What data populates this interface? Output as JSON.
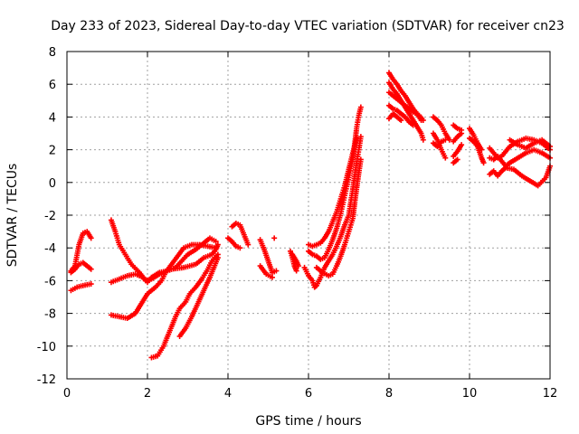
{
  "chart_data": {
    "type": "scatter",
    "title": "Day 233 of 2023, Sidereal Day-to-day VTEC variation (SDTVAR) for receiver cn23",
    "xlabel": "GPS time / hours",
    "ylabel": "SDTVAR / TECUs",
    "xlim": [
      0,
      12
    ],
    "ylim": [
      -12,
      8
    ],
    "xticks": [
      0,
      2,
      4,
      6,
      8,
      10,
      12
    ],
    "yticks": [
      -12,
      -10,
      -8,
      -6,
      -4,
      -2,
      0,
      2,
      4,
      6,
      8
    ],
    "grid": true,
    "marker": "+",
    "color": "#ff0000",
    "tracks": [
      {
        "name": "track-1",
        "points": [
          [
            0.1,
            -5.4
          ],
          [
            0.2,
            -5.1
          ],
          [
            0.3,
            -3.8
          ],
          [
            0.4,
            -3.1
          ],
          [
            0.5,
            -3.0
          ],
          [
            0.6,
            -3.4
          ]
        ]
      },
      {
        "name": "track-2",
        "points": [
          [
            0.1,
            -5.5
          ],
          [
            0.2,
            -5.3
          ],
          [
            0.3,
            -5.0
          ],
          [
            0.4,
            -4.9
          ],
          [
            0.5,
            -5.1
          ],
          [
            0.6,
            -5.3
          ]
        ]
      },
      {
        "name": "track-3",
        "points": [
          [
            0.1,
            -6.6
          ],
          [
            0.25,
            -6.4
          ],
          [
            0.4,
            -6.3
          ],
          [
            0.6,
            -6.2
          ]
        ]
      },
      {
        "name": "track-4",
        "points": [
          [
            1.1,
            -2.3
          ],
          [
            1.2,
            -3.0
          ],
          [
            1.3,
            -3.8
          ],
          [
            1.45,
            -4.4
          ],
          [
            1.6,
            -5.0
          ],
          [
            1.8,
            -5.5
          ],
          [
            1.95,
            -6.0
          ],
          [
            2.1,
            -5.9
          ],
          [
            2.3,
            -5.6
          ],
          [
            2.6,
            -5.3
          ],
          [
            2.9,
            -5.2
          ],
          [
            3.2,
            -5.0
          ],
          [
            3.4,
            -4.6
          ],
          [
            3.6,
            -4.4
          ],
          [
            3.7,
            -4.1
          ],
          [
            3.75,
            -3.8
          ]
        ]
      },
      {
        "name": "track-5",
        "points": [
          [
            1.1,
            -6.1
          ],
          [
            1.3,
            -5.9
          ],
          [
            1.5,
            -5.7
          ],
          [
            1.7,
            -5.6
          ],
          [
            1.9,
            -5.8
          ],
          [
            2.0,
            -6.1
          ],
          [
            2.1,
            -5.8
          ],
          [
            2.3,
            -5.5
          ],
          [
            2.5,
            -5.4
          ],
          [
            2.7,
            -5.2
          ],
          [
            2.85,
            -4.8
          ],
          [
            3.0,
            -4.4
          ],
          [
            3.2,
            -4.1
          ],
          [
            3.4,
            -3.7
          ],
          [
            3.55,
            -3.4
          ],
          [
            3.7,
            -3.6
          ]
        ]
      },
      {
        "name": "track-6",
        "points": [
          [
            1.1,
            -8.1
          ],
          [
            1.3,
            -8.2
          ],
          [
            1.5,
            -8.3
          ],
          [
            1.7,
            -8.0
          ],
          [
            1.8,
            -7.6
          ],
          [
            1.9,
            -7.2
          ],
          [
            2.0,
            -6.8
          ],
          [
            2.2,
            -6.4
          ],
          [
            2.35,
            -6.0
          ],
          [
            2.45,
            -5.5
          ],
          [
            2.6,
            -5.0
          ],
          [
            2.75,
            -4.5
          ],
          [
            2.9,
            -4.0
          ],
          [
            3.1,
            -3.8
          ],
          [
            3.3,
            -3.8
          ],
          [
            3.5,
            -3.9
          ],
          [
            3.7,
            -4.0
          ]
        ]
      },
      {
        "name": "track-7",
        "points": [
          [
            2.1,
            -10.7
          ],
          [
            2.25,
            -10.6
          ],
          [
            2.4,
            -10.0
          ],
          [
            2.5,
            -9.4
          ],
          [
            2.6,
            -8.8
          ],
          [
            2.7,
            -8.2
          ],
          [
            2.8,
            -7.7
          ],
          [
            2.95,
            -7.3
          ],
          [
            3.05,
            -6.8
          ],
          [
            3.2,
            -6.4
          ],
          [
            3.35,
            -5.9
          ],
          [
            3.5,
            -5.3
          ],
          [
            3.6,
            -4.8
          ],
          [
            3.75,
            -4.4
          ]
        ]
      },
      {
        "name": "track-8",
        "points": [
          [
            2.8,
            -9.4
          ],
          [
            2.95,
            -8.9
          ],
          [
            3.1,
            -8.2
          ],
          [
            3.25,
            -7.4
          ],
          [
            3.4,
            -6.6
          ],
          [
            3.55,
            -5.8
          ],
          [
            3.65,
            -5.2
          ],
          [
            3.75,
            -4.6
          ]
        ]
      },
      {
        "name": "track-9",
        "points": [
          [
            4.1,
            -2.7
          ],
          [
            4.2,
            -2.5
          ],
          [
            4.3,
            -2.6
          ],
          [
            4.4,
            -3.2
          ],
          [
            4.5,
            -3.8
          ]
        ]
      },
      {
        "name": "track-10",
        "points": [
          [
            4.0,
            -3.4
          ],
          [
            4.1,
            -3.6
          ],
          [
            4.2,
            -3.9
          ],
          [
            4.3,
            -4.0
          ]
        ]
      },
      {
        "name": "track-11",
        "points": [
          [
            4.8,
            -3.5
          ],
          [
            4.9,
            -4.1
          ],
          [
            5.0,
            -4.8
          ],
          [
            5.1,
            -5.5
          ],
          [
            5.2,
            -5.4
          ]
        ]
      },
      {
        "name": "track-12",
        "points": [
          [
            4.8,
            -5.1
          ],
          [
            4.95,
            -5.6
          ],
          [
            5.1,
            -5.8
          ]
        ]
      },
      {
        "name": "track-13",
        "points": [
          [
            5.15,
            -3.4
          ]
        ]
      },
      {
        "name": "track-14",
        "points": [
          [
            5.55,
            -4.2
          ],
          [
            5.6,
            -4.6
          ],
          [
            5.65,
            -5.1
          ],
          [
            5.7,
            -5.4
          ]
        ]
      },
      {
        "name": "track-15",
        "points": [
          [
            5.6,
            -4.4
          ],
          [
            5.7,
            -4.8
          ],
          [
            5.75,
            -5.1
          ]
        ]
      },
      {
        "name": "track-16",
        "points": [
          [
            5.9,
            -5.2
          ],
          [
            6.0,
            -5.7
          ],
          [
            6.1,
            -6.0
          ],
          [
            6.15,
            -6.4
          ],
          [
            6.2,
            -6.3
          ],
          [
            6.3,
            -5.8
          ],
          [
            6.4,
            -5.2
          ],
          [
            6.5,
            -4.8
          ],
          [
            6.6,
            -4.4
          ],
          [
            6.7,
            -3.9
          ],
          [
            6.8,
            -3.3
          ],
          [
            6.9,
            -2.6
          ],
          [
            7.0,
            -2.0
          ],
          [
            7.05,
            -1.2
          ],
          [
            7.1,
            -0.4
          ],
          [
            7.15,
            0.5
          ],
          [
            7.2,
            1.3
          ],
          [
            7.25,
            2.0
          ],
          [
            7.3,
            2.8
          ]
        ]
      },
      {
        "name": "track-17",
        "points": [
          [
            6.0,
            -4.2
          ],
          [
            6.1,
            -4.4
          ],
          [
            6.2,
            -4.5
          ],
          [
            6.3,
            -4.7
          ],
          [
            6.4,
            -4.6
          ],
          [
            6.5,
            -4.1
          ],
          [
            6.6,
            -3.5
          ],
          [
            6.7,
            -2.8
          ],
          [
            6.8,
            -1.9
          ],
          [
            6.9,
            -0.8
          ],
          [
            7.0,
            0.3
          ],
          [
            7.1,
            1.4
          ],
          [
            7.15,
            2.4
          ],
          [
            7.2,
            3.4
          ],
          [
            7.25,
            4.1
          ],
          [
            7.3,
            4.6
          ]
        ]
      },
      {
        "name": "track-18",
        "points": [
          [
            6.0,
            -3.8
          ],
          [
            6.1,
            -3.9
          ],
          [
            6.3,
            -3.7
          ],
          [
            6.4,
            -3.4
          ],
          [
            6.5,
            -3.0
          ],
          [
            6.6,
            -2.4
          ],
          [
            6.7,
            -1.8
          ],
          [
            6.8,
            -1.0
          ],
          [
            6.9,
            -0.2
          ],
          [
            7.0,
            0.8
          ],
          [
            7.1,
            1.8
          ],
          [
            7.2,
            2.7
          ]
        ]
      },
      {
        "name": "track-19",
        "points": [
          [
            6.2,
            -5.2
          ],
          [
            6.35,
            -5.5
          ],
          [
            6.5,
            -5.7
          ],
          [
            6.6,
            -5.6
          ],
          [
            6.7,
            -5.1
          ],
          [
            6.8,
            -4.5
          ],
          [
            6.9,
            -3.8
          ],
          [
            7.0,
            -3.0
          ],
          [
            7.1,
            -2.2
          ],
          [
            7.15,
            -1.2
          ],
          [
            7.2,
            -0.3
          ],
          [
            7.25,
            0.6
          ],
          [
            7.3,
            1.4
          ]
        ]
      },
      {
        "name": "track-20",
        "points": [
          [
            8.0,
            6.7
          ],
          [
            8.1,
            6.3
          ],
          [
            8.2,
            6.0
          ],
          [
            8.3,
            5.6
          ],
          [
            8.4,
            5.3
          ],
          [
            8.5,
            4.9
          ],
          [
            8.6,
            4.5
          ],
          [
            8.7,
            4.2
          ],
          [
            8.8,
            3.8
          ]
        ]
      },
      {
        "name": "track-21",
        "points": [
          [
            8.0,
            6.1
          ],
          [
            8.1,
            5.7
          ],
          [
            8.2,
            5.4
          ],
          [
            8.3,
            5.0
          ],
          [
            8.4,
            4.6
          ],
          [
            8.5,
            4.2
          ],
          [
            8.6,
            3.8
          ],
          [
            8.7,
            3.4
          ],
          [
            8.8,
            3.0
          ],
          [
            8.85,
            2.6
          ]
        ]
      },
      {
        "name": "track-22",
        "points": [
          [
            8.0,
            5.5
          ],
          [
            8.15,
            5.2
          ],
          [
            8.3,
            4.9
          ],
          [
            8.45,
            4.6
          ],
          [
            8.6,
            4.3
          ],
          [
            8.75,
            4.1
          ],
          [
            8.85,
            3.8
          ]
        ]
      },
      {
        "name": "track-23",
        "points": [
          [
            8.0,
            4.7
          ],
          [
            8.1,
            4.5
          ],
          [
            8.2,
            4.4
          ],
          [
            8.3,
            4.2
          ],
          [
            8.4,
            4.0
          ],
          [
            8.5,
            3.7
          ],
          [
            8.6,
            3.5
          ]
        ]
      },
      {
        "name": "track-24",
        "points": [
          [
            8.0,
            3.9
          ],
          [
            8.1,
            4.2
          ],
          [
            8.2,
            4.0
          ],
          [
            8.3,
            3.8
          ]
        ]
      },
      {
        "name": "track-25",
        "points": [
          [
            9.1,
            4.0
          ],
          [
            9.2,
            3.8
          ],
          [
            9.3,
            3.5
          ],
          [
            9.4,
            3.0
          ],
          [
            9.5,
            2.6
          ]
        ]
      },
      {
        "name": "track-26",
        "points": [
          [
            9.1,
            3.0
          ],
          [
            9.2,
            2.6
          ],
          [
            9.3,
            2.0
          ],
          [
            9.4,
            1.5
          ]
        ]
      },
      {
        "name": "track-27",
        "points": [
          [
            9.1,
            2.4
          ],
          [
            9.2,
            2.2
          ],
          [
            9.3,
            2.5
          ],
          [
            9.4,
            2.6
          ]
        ]
      },
      {
        "name": "track-28",
        "points": [
          [
            9.6,
            3.5
          ],
          [
            9.7,
            3.3
          ],
          [
            9.8,
            3.2
          ]
        ]
      },
      {
        "name": "track-29",
        "points": [
          [
            9.6,
            2.5
          ],
          [
            9.7,
            2.8
          ],
          [
            9.8,
            3.0
          ]
        ]
      },
      {
        "name": "track-30",
        "points": [
          [
            9.6,
            1.6
          ],
          [
            9.7,
            1.9
          ],
          [
            9.8,
            2.3
          ]
        ]
      },
      {
        "name": "track-31",
        "points": [
          [
            9.6,
            1.2
          ],
          [
            9.7,
            1.4
          ]
        ]
      },
      {
        "name": "track-32",
        "points": [
          [
            10.0,
            3.3
          ],
          [
            10.1,
            2.9
          ],
          [
            10.2,
            2.4
          ],
          [
            10.3,
            2.0
          ]
        ]
      },
      {
        "name": "track-33",
        "points": [
          [
            10.0,
            2.7
          ],
          [
            10.1,
            2.5
          ],
          [
            10.2,
            2.2
          ],
          [
            10.3,
            1.5
          ],
          [
            10.35,
            1.2
          ]
        ]
      },
      {
        "name": "track-34",
        "points": [
          [
            10.5,
            2.1
          ],
          [
            10.6,
            1.8
          ],
          [
            10.7,
            1.5
          ],
          [
            10.8,
            1.6
          ],
          [
            10.9,
            1.9
          ],
          [
            11.0,
            2.2
          ],
          [
            11.2,
            2.5
          ],
          [
            11.4,
            2.7
          ],
          [
            11.6,
            2.6
          ],
          [
            11.8,
            2.4
          ],
          [
            12.0,
            2.0
          ]
        ]
      },
      {
        "name": "track-35",
        "points": [
          [
            10.5,
            1.5
          ],
          [
            10.6,
            1.4
          ],
          [
            10.7,
            1.6
          ],
          [
            10.8,
            1.3
          ],
          [
            10.9,
            1.0
          ],
          [
            11.0,
            1.2
          ],
          [
            11.2,
            1.5
          ],
          [
            11.4,
            1.8
          ],
          [
            11.6,
            2.0
          ],
          [
            11.8,
            1.8
          ],
          [
            12.0,
            1.5
          ]
        ]
      },
      {
        "name": "track-36",
        "points": [
          [
            10.5,
            0.5
          ],
          [
            10.6,
            0.7
          ],
          [
            10.7,
            0.4
          ],
          [
            10.8,
            0.7
          ],
          [
            10.9,
            0.9
          ],
          [
            11.1,
            0.8
          ],
          [
            11.3,
            0.4
          ],
          [
            11.5,
            0.1
          ],
          [
            11.7,
            -0.2
          ],
          [
            11.9,
            0.3
          ],
          [
            12.0,
            1.0
          ]
        ]
      },
      {
        "name": "track-37",
        "points": [
          [
            11.0,
            2.6
          ],
          [
            11.2,
            2.3
          ],
          [
            11.4,
            2.1
          ],
          [
            11.6,
            2.4
          ],
          [
            11.8,
            2.6
          ],
          [
            12.0,
            2.2
          ]
        ]
      }
    ]
  }
}
